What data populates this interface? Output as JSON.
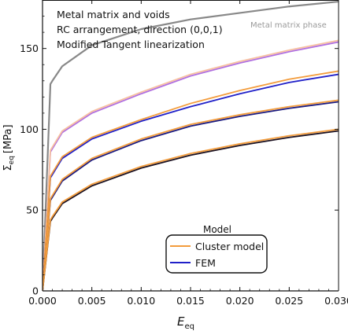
{
  "chart_data": {
    "type": "line",
    "annotations": [
      "Metal matrix and voids",
      "RC arrangement, direction (0,0,1)",
      "Modified Tangent linearization"
    ],
    "xlabel": "E",
    "xlabel_sub": "eq",
    "ylabel": "Σ",
    "ylabel_sub": "eq",
    "ylabel_unit": "[MPa]",
    "xlim": [
      0,
      0.03
    ],
    "ylim": [
      0,
      180
    ],
    "x_ticks": [
      0.0,
      0.005,
      0.01,
      0.015,
      0.02,
      0.025,
      0.03
    ],
    "x_tick_labels": [
      "0.000",
      "0.005",
      "0.010",
      "0.015",
      "0.020",
      "0.025",
      "0.030"
    ],
    "y_ticks": [
      0,
      50,
      100,
      150
    ],
    "y_tick_labels": [
      "0",
      "50",
      "100",
      "150"
    ],
    "grid": false,
    "legend": {
      "title": "Model",
      "position": "bottom-right",
      "entries": [
        {
          "label": "Cluster model",
          "color": "#f39c3c"
        },
        {
          "label": "FEM",
          "color": "#2020c8"
        }
      ]
    },
    "matrix_phase_label": "Metal matrix phase",
    "series": [
      {
        "group": "matrix",
        "model": "matrix",
        "color": "#888888",
        "x": [
          0,
          0.0008,
          0.001,
          0.002,
          0.005,
          0.01,
          0.015,
          0.02,
          0.025,
          0.03
        ],
        "y": [
          0,
          128,
          130,
          139,
          152,
          162,
          168,
          172,
          176,
          179
        ]
      },
      {
        "group": 1,
        "model": "FEM",
        "color": "#b070e0",
        "x": [
          0,
          0.0008,
          0.001,
          0.002,
          0.005,
          0.01,
          0.015,
          0.02,
          0.025,
          0.03
        ],
        "y": [
          0,
          86,
          88,
          98,
          110,
          122,
          133,
          141,
          148,
          154
        ]
      },
      {
        "group": 1,
        "model": "Cluster model",
        "color": "#f7c0a0",
        "x": [
          0,
          0.0008,
          0.001,
          0.002,
          0.005,
          0.01,
          0.015,
          0.02,
          0.025,
          0.03
        ],
        "y": [
          0,
          87,
          89,
          99,
          111,
          123,
          134,
          142,
          149,
          155
        ]
      },
      {
        "group": 2,
        "model": "FEM",
        "color": "#2020c8",
        "x": [
          0,
          0.0008,
          0.001,
          0.002,
          0.005,
          0.01,
          0.015,
          0.02,
          0.025,
          0.03
        ],
        "y": [
          0,
          70,
          72,
          82,
          94,
          105,
          114,
          122,
          129,
          134
        ]
      },
      {
        "group": 2,
        "model": "Cluster model",
        "color": "#f39c3c",
        "x": [
          0,
          0.0008,
          0.001,
          0.002,
          0.005,
          0.01,
          0.015,
          0.02,
          0.025,
          0.03
        ],
        "y": [
          0,
          71,
          73,
          83,
          95,
          106,
          116,
          124,
          131,
          136
        ]
      },
      {
        "group": 3,
        "model": "FEM",
        "color": "#1a1a80",
        "x": [
          0,
          0.0008,
          0.001,
          0.002,
          0.005,
          0.01,
          0.015,
          0.02,
          0.025,
          0.03
        ],
        "y": [
          0,
          56,
          58,
          68,
          81,
          93,
          102,
          108,
          113,
          117
        ]
      },
      {
        "group": 3,
        "model": "Cluster model",
        "color": "#f39c3c",
        "x": [
          0,
          0.0008,
          0.001,
          0.002,
          0.005,
          0.01,
          0.015,
          0.02,
          0.025,
          0.03
        ],
        "y": [
          0,
          57,
          59,
          69,
          82,
          94,
          103,
          109,
          114,
          118
        ]
      },
      {
        "group": 4,
        "model": "FEM",
        "color": "#1a1020",
        "x": [
          0,
          0.0008,
          0.001,
          0.002,
          0.005,
          0.01,
          0.015,
          0.02,
          0.025,
          0.03
        ],
        "y": [
          0,
          43,
          45,
          54,
          65,
          76,
          84,
          90,
          95,
          99
        ]
      },
      {
        "group": 4,
        "model": "Cluster model",
        "color": "#f39c3c",
        "x": [
          0,
          0.0008,
          0.001,
          0.002,
          0.005,
          0.01,
          0.015,
          0.02,
          0.025,
          0.03
        ],
        "y": [
          0,
          44,
          46,
          55,
          66,
          77,
          85,
          91,
          96,
          100
        ]
      }
    ]
  }
}
